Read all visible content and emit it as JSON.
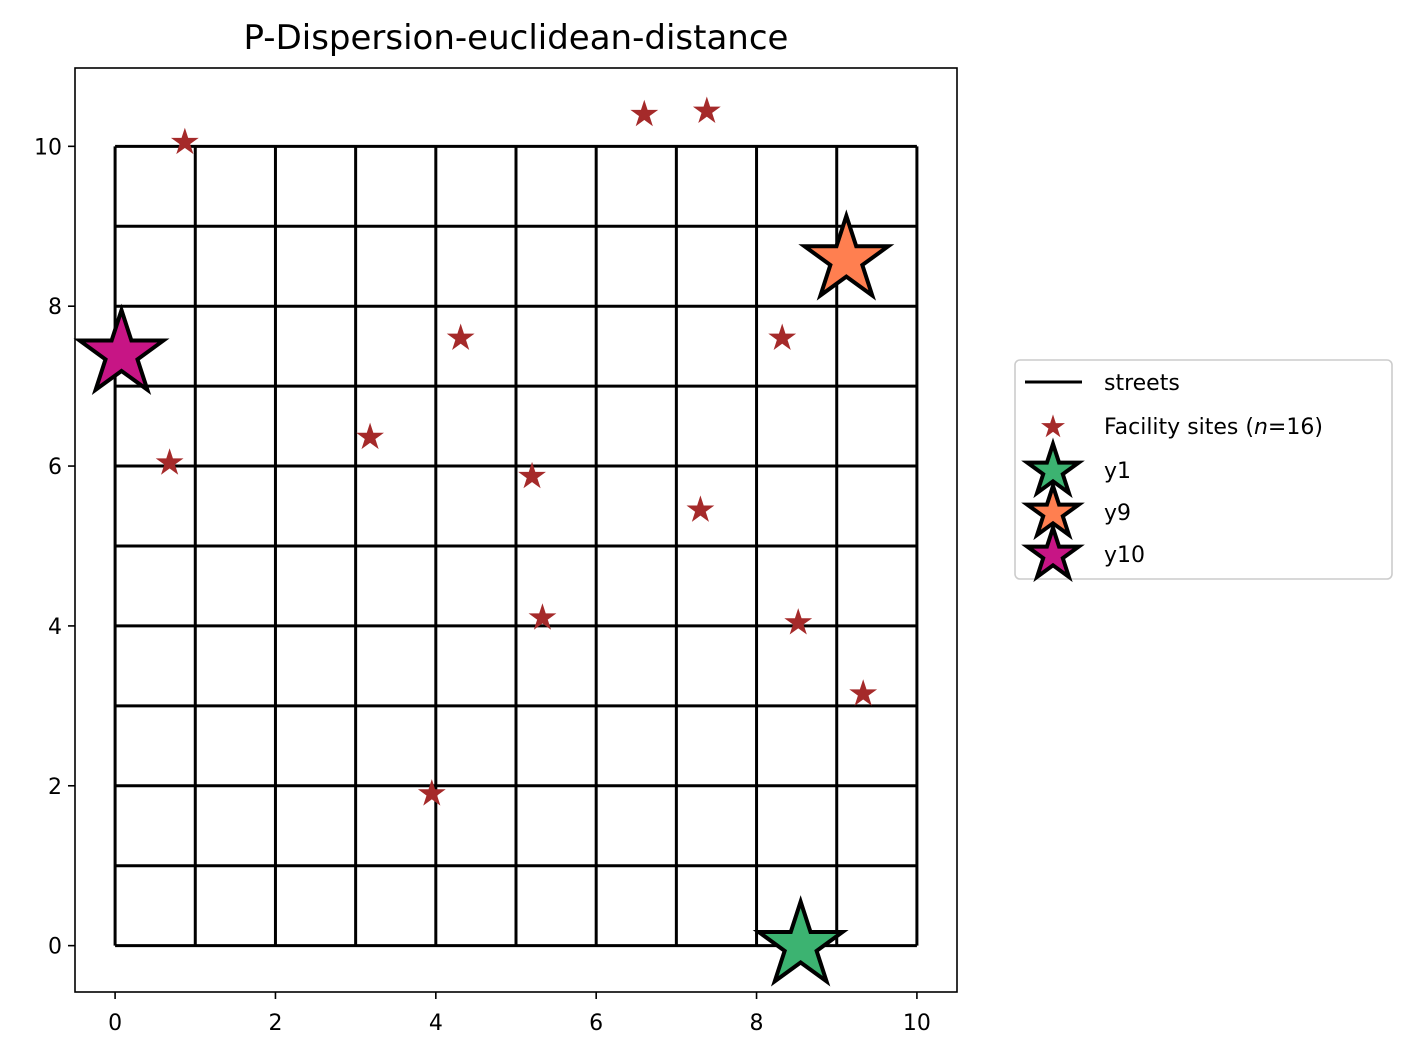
{
  "chart_data": {
    "type": "scatter",
    "title": "P-Dispersion-euclidean-distance",
    "xlabel": "",
    "ylabel": "",
    "xlim": [
      -0.5,
      10.5
    ],
    "ylim": [
      -0.58,
      10.98
    ],
    "xticks": [
      "0",
      "2",
      "4",
      "6",
      "8",
      "10"
    ],
    "yticks": [
      "0",
      "2",
      "4",
      "6",
      "8",
      "10"
    ],
    "streets": {
      "name": "streets",
      "color": "#000000",
      "x_lines": [
        0,
        1,
        2,
        3,
        4,
        5,
        6,
        7,
        8,
        9,
        10
      ],
      "y_lines": [
        0,
        1,
        2,
        3,
        4,
        5,
        6,
        7,
        8,
        9,
        10
      ],
      "extent": [
        0,
        10
      ]
    },
    "series": [
      {
        "name": "Facility sites (n=16)",
        "label_prefix": "Facility sites (",
        "label_italic": "n",
        "label_suffix": "=16)",
        "color": "#a52a2a",
        "marker": "star-small",
        "points": [
          {
            "x": 0.87,
            "y": 10.05
          },
          {
            "x": 6.6,
            "y": 10.4
          },
          {
            "x": 7.38,
            "y": 10.44
          },
          {
            "x": 4.31,
            "y": 7.6
          },
          {
            "x": 8.32,
            "y": 7.6
          },
          {
            "x": 3.18,
            "y": 6.36
          },
          {
            "x": 0.68,
            "y": 6.04
          },
          {
            "x": 5.2,
            "y": 5.87
          },
          {
            "x": 7.3,
            "y": 5.45
          },
          {
            "x": 5.33,
            "y": 4.1
          },
          {
            "x": 8.52,
            "y": 4.04
          },
          {
            "x": 9.33,
            "y": 3.15
          },
          {
            "x": 3.95,
            "y": 1.9
          },
          {
            "x": 8.55,
            "y": 0.0
          },
          {
            "x": 9.12,
            "y": 8.58
          },
          {
            "x": 0.08,
            "y": 7.4
          }
        ]
      },
      {
        "name": "y1",
        "color": "#3cb371",
        "marker": "star-large",
        "points": [
          {
            "x": 8.55,
            "y": 0.0
          }
        ]
      },
      {
        "name": "y9",
        "color": "#ff7f50",
        "marker": "star-large",
        "points": [
          {
            "x": 9.12,
            "y": 8.58
          }
        ]
      },
      {
        "name": "y10",
        "color": "#c71585",
        "marker": "star-large",
        "points": [
          {
            "x": 0.08,
            "y": 7.4
          }
        ]
      }
    ],
    "legend": {
      "position": "right-outside",
      "entries": [
        "streets",
        "Facility sites (n=16)",
        "y1",
        "y9",
        "y10"
      ]
    },
    "grid": false
  }
}
